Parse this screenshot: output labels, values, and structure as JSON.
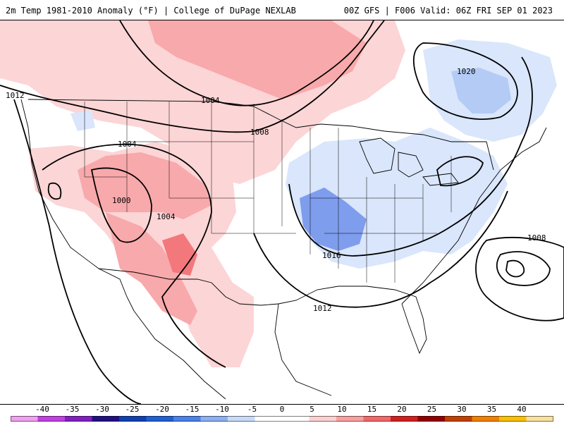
{
  "header": {
    "title_left": "2m Temp 1981-2010 Anomaly (°F) | College of DuPage NEXLAB",
    "title_right": "00Z GFS | F006 Valid: 06Z FRI SEP 01 2023"
  },
  "map": {
    "isobar_labels": {
      "l1012_west": "1012",
      "l1004_north": "1004",
      "l1008_central": "1008",
      "l1004_west": "1004",
      "l1000": "1000",
      "l1004_sw": "1004",
      "l1020": "1020",
      "l1016": "1016",
      "l1012_south": "1012",
      "l1008_east": "1008"
    },
    "colors": {
      "warm_light": "#fcd5d6",
      "warm_mid": "#f8a9ab",
      "warm_strong": "#f2787c",
      "cool_light": "#d9e6fb",
      "cool_mid": "#b4cbf5",
      "cool_strong": "#7f9ded"
    }
  },
  "colorbar": {
    "labels": [
      "-40",
      "-35",
      "-30",
      "-25",
      "-20",
      "-15",
      "-10",
      "-5",
      "0",
      "5",
      "10",
      "15",
      "20",
      "25",
      "30",
      "35",
      "40"
    ],
    "colors": [
      "#f0a0f0",
      "#c040e0",
      "#8020c0",
      "#201080",
      "#1040b0",
      "#2060d0",
      "#4a80e8",
      "#8cb0f0",
      "#c8daf8",
      "#ffffff",
      "#ffffff",
      "#fcd0d0",
      "#f8a0a0",
      "#f06868",
      "#d02020",
      "#900000",
      "#c04000",
      "#f08000",
      "#f8c000",
      "#f8e0a0"
    ]
  }
}
